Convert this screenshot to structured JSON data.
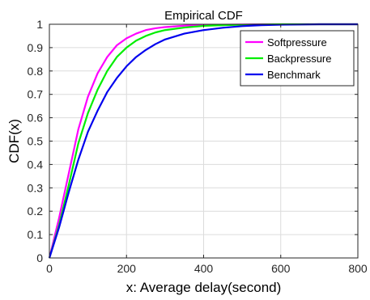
{
  "chart_data": {
    "type": "line",
    "title": "Empirical CDF",
    "xlabel": "x: Average delay(second)",
    "ylabel": "CDF(x)",
    "xlim": [
      0,
      800
    ],
    "ylim": [
      0,
      1
    ],
    "xticks": [
      0,
      200,
      400,
      600,
      800
    ],
    "yticks": [
      0,
      0.1,
      0.2,
      0.3,
      0.4,
      0.5,
      0.6,
      0.7,
      0.8,
      0.9,
      1
    ],
    "grid": true,
    "legend_position": "top-right",
    "series": [
      {
        "name": "Softpressure",
        "color": "#ff00ff",
        "x": [
          0,
          25,
          50,
          75,
          100,
          125,
          150,
          175,
          200,
          225,
          250,
          275,
          300,
          350,
          400,
          450,
          500,
          550,
          600,
          650,
          700,
          800
        ],
        "y": [
          0,
          0.17,
          0.36,
          0.55,
          0.69,
          0.79,
          0.86,
          0.91,
          0.94,
          0.96,
          0.975,
          0.983,
          0.988,
          0.994,
          0.997,
          0.998,
          0.999,
          1,
          1,
          1,
          1,
          1
        ]
      },
      {
        "name": "Backpressure",
        "color": "#00ee00",
        "x": [
          0,
          25,
          50,
          75,
          100,
          125,
          150,
          175,
          200,
          225,
          250,
          275,
          300,
          350,
          400,
          450,
          500,
          550,
          600,
          650,
          700,
          800
        ],
        "y": [
          0,
          0.14,
          0.31,
          0.49,
          0.62,
          0.72,
          0.8,
          0.86,
          0.9,
          0.93,
          0.95,
          0.965,
          0.975,
          0.986,
          0.993,
          0.996,
          0.998,
          0.999,
          1,
          1,
          1,
          1
        ]
      },
      {
        "name": "Benchmark",
        "color": "#0000ee",
        "x": [
          0,
          25,
          50,
          75,
          100,
          125,
          150,
          175,
          200,
          225,
          250,
          275,
          300,
          350,
          400,
          450,
          500,
          550,
          600,
          650,
          700,
          800
        ],
        "y": [
          0,
          0.13,
          0.28,
          0.42,
          0.54,
          0.63,
          0.71,
          0.77,
          0.82,
          0.86,
          0.89,
          0.915,
          0.935,
          0.96,
          0.975,
          0.985,
          0.992,
          0.996,
          0.998,
          0.999,
          1,
          1
        ]
      }
    ]
  }
}
